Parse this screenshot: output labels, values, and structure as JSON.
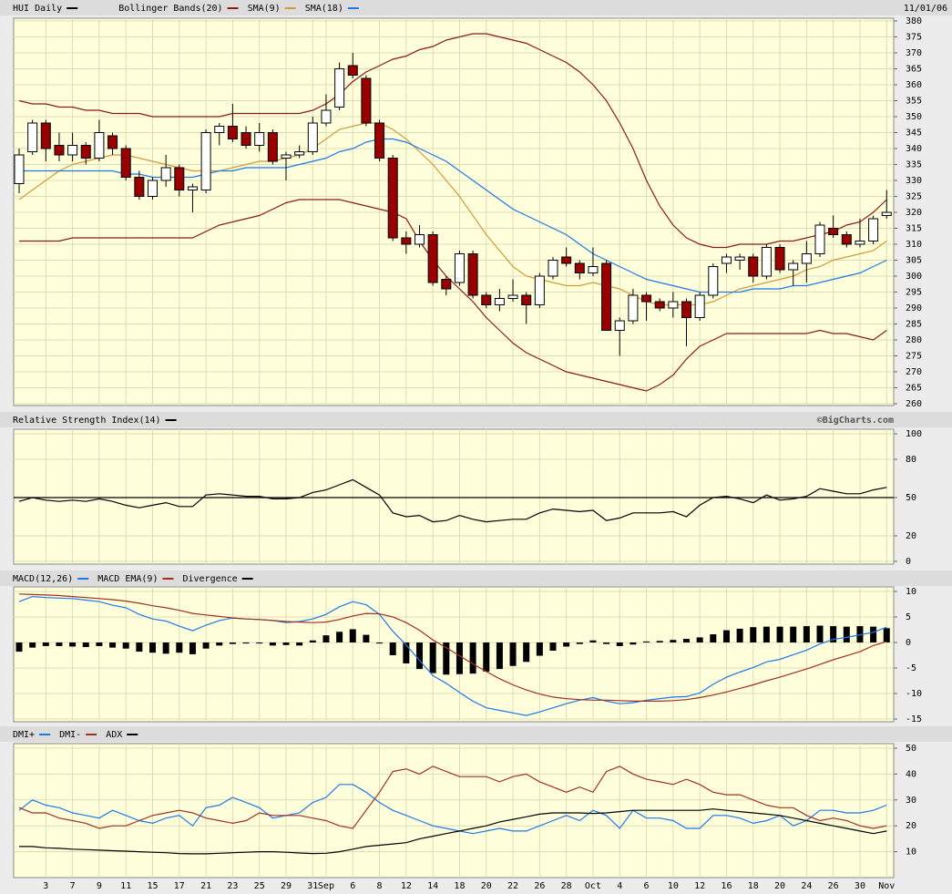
{
  "chart_data": [
    {
      "type": "candlestick",
      "title": "HUI Daily",
      "date": "11/01/06",
      "color": "#000000",
      "up_color": "#ffffff",
      "down_color": "#990000",
      "open": [
        329,
        339,
        348,
        341,
        338,
        341,
        337,
        344,
        340,
        331,
        325,
        330,
        334,
        327,
        327,
        345,
        347,
        345,
        341,
        345,
        337,
        338,
        339,
        348,
        353,
        366,
        362,
        348,
        337,
        312,
        310,
        313,
        299,
        298,
        307,
        294,
        291,
        293,
        294,
        291,
        300,
        306,
        304,
        301,
        304,
        283,
        286,
        294,
        292,
        290,
        292,
        287,
        294,
        304,
        305,
        306,
        300,
        309,
        302,
        304,
        307,
        315,
        313,
        310,
        311,
        319
      ],
      "high": [
        340,
        349,
        349,
        345,
        345,
        342,
        349,
        345,
        341,
        333,
        331,
        338,
        335,
        329,
        346,
        348,
        354,
        347,
        348,
        346,
        339,
        341,
        350,
        357,
        367,
        370,
        363,
        349,
        338,
        314,
        316,
        314,
        300,
        308,
        308,
        295,
        296,
        299,
        295,
        301,
        306,
        309,
        305,
        309,
        305,
        287,
        296,
        295,
        293,
        295,
        293,
        295,
        304,
        307,
        307,
        307,
        310,
        310,
        305,
        311,
        317,
        319,
        314,
        318,
        319,
        327
      ],
      "low": [
        326,
        338,
        336,
        336,
        336,
        335,
        336,
        338,
        330,
        324,
        324,
        328,
        325,
        320,
        326,
        341,
        342,
        340,
        339,
        335,
        330,
        337,
        338,
        347,
        352,
        362,
        347,
        336,
        311,
        307,
        309,
        297,
        294,
        297,
        293,
        290,
        289,
        292,
        285,
        290,
        299,
        303,
        299,
        300,
        283,
        275,
        285,
        286,
        289,
        287,
        278,
        286,
        293,
        301,
        302,
        298,
        299,
        301,
        297,
        298,
        306,
        312,
        309,
        309,
        310,
        318
      ],
      "close": [
        338,
        348,
        340,
        338,
        341,
        337,
        345,
        340,
        331,
        325,
        330,
        334,
        327,
        328,
        345,
        347,
        343,
        341,
        345,
        336,
        338,
        339,
        348,
        352,
        365,
        363,
        348,
        337,
        312,
        310,
        313,
        298,
        296,
        307,
        294,
        291,
        293,
        294,
        291,
        300,
        305,
        304,
        301,
        303,
        283,
        286,
        294,
        292,
        290,
        292,
        287,
        294,
        303,
        306,
        306,
        300,
        309,
        302,
        304,
        307,
        316,
        313,
        310,
        311,
        318,
        320
      ],
      "series": [
        {
          "name": "Bollinger Bands(20)",
          "color": "#8b1a1a",
          "upper": [
            355,
            354,
            354,
            353,
            353,
            352,
            352,
            351,
            351,
            351,
            350,
            350,
            350,
            350,
            350,
            350,
            351,
            351,
            351,
            351,
            351,
            351,
            352,
            354,
            357,
            361,
            364,
            366,
            368,
            369,
            371,
            372,
            374,
            375,
            376,
            376,
            375,
            374,
            373,
            371,
            369,
            367,
            364,
            360,
            355,
            348,
            340,
            330,
            322,
            316,
            312,
            310,
            309,
            309,
            310,
            310,
            310,
            311,
            311,
            312,
            313,
            314,
            316,
            317,
            320,
            324
          ],
          "lower": [
            311,
            311,
            311,
            311,
            312,
            312,
            312,
            312,
            312,
            312,
            312,
            312,
            312,
            312,
            314,
            316,
            317,
            318,
            319,
            321,
            323,
            324,
            324,
            324,
            324,
            323,
            322,
            321,
            320,
            318,
            311,
            305,
            300,
            296,
            292,
            287,
            283,
            279,
            276,
            274,
            272,
            270,
            269,
            268,
            267,
            266,
            265,
            264,
            266,
            269,
            274,
            278,
            280,
            282,
            282,
            282,
            282,
            282,
            282,
            282,
            283,
            282,
            282,
            281,
            280,
            283
          ]
        },
        {
          "name": "SMA(9)",
          "color": "#d49a3a",
          "values": [
            324,
            327,
            330,
            333,
            335,
            336,
            337,
            338,
            338,
            337,
            336,
            335,
            334,
            333,
            333,
            333,
            334,
            335,
            336,
            336,
            337,
            338,
            340,
            343,
            346,
            347,
            348,
            348,
            346,
            343,
            339,
            335,
            330,
            325,
            319,
            313,
            308,
            303,
            300,
            299,
            298,
            297,
            297,
            298,
            297,
            296,
            294,
            292,
            291,
            291,
            291,
            291,
            292,
            294,
            296,
            297,
            298,
            299,
            300,
            302,
            303,
            305,
            306,
            307,
            308,
            311
          ]
        },
        {
          "name": "SMA(18)",
          "color": "#1e78e6",
          "values": [
            333,
            333,
            333,
            333,
            333,
            333,
            333,
            333,
            332,
            332,
            331,
            331,
            331,
            331,
            332,
            333,
            333,
            334,
            334,
            334,
            334,
            335,
            336,
            337,
            339,
            340,
            342,
            343,
            343,
            342,
            340,
            338,
            336,
            333,
            330,
            327,
            324,
            321,
            319,
            317,
            315,
            313,
            310,
            307,
            305,
            303,
            301,
            299,
            298,
            297,
            296,
            295,
            295,
            295,
            295,
            296,
            296,
            296,
            297,
            297,
            298,
            299,
            300,
            301,
            303,
            305
          ]
        }
      ],
      "ylim": [
        260,
        380
      ],
      "yticks": [
        260,
        265,
        270,
        275,
        280,
        285,
        290,
        295,
        300,
        305,
        310,
        315,
        320,
        325,
        330,
        335,
        340,
        345,
        350,
        355,
        360,
        365,
        370,
        375,
        380
      ],
      "grid": true
    },
    {
      "type": "line",
      "title": "Relative Strength Index(14)",
      "source": "©BigCharts.com",
      "color": "#000000",
      "values": [
        47,
        50,
        48,
        47,
        48,
        47,
        49,
        47,
        44,
        42,
        44,
        46,
        43,
        43,
        52,
        53,
        52,
        51,
        51,
        49,
        49,
        50,
        54,
        56,
        60,
        64,
        58,
        52,
        38,
        35,
        36,
        31,
        32,
        36,
        33,
        31,
        32,
        33,
        33,
        38,
        41,
        40,
        39,
        40,
        32,
        34,
        38,
        38,
        38,
        39,
        35,
        44,
        50,
        51,
        49,
        46,
        52,
        48,
        49,
        51,
        57,
        55,
        53,
        53,
        56,
        58
      ],
      "midline": 50,
      "ylim": [
        0,
        100
      ],
      "yticks": [
        0,
        20,
        50,
        80,
        100
      ],
      "grid": true
    },
    {
      "type": "line",
      "series": [
        {
          "name": "MACD(12,26)",
          "color": "#1e78e6",
          "values": [
            8,
            9,
            8.8,
            8.7,
            8.6,
            8.3,
            8,
            7.3,
            6.8,
            5.5,
            4.6,
            4.2,
            3.2,
            2.3,
            3.4,
            4.3,
            4.8,
            4.6,
            4.5,
            4.3,
            3.9,
            4.1,
            4.6,
            5.5,
            7,
            8,
            7.4,
            5.5,
            2.2,
            -0.5,
            -3.5,
            -6.5,
            -8,
            -9.8,
            -11.5,
            -12.8,
            -13.3,
            -13.8,
            -14.3,
            -13.6,
            -12.8,
            -12,
            -11.3,
            -10.8,
            -11.5,
            -12,
            -11.8,
            -11.3,
            -11,
            -10.7,
            -10.6,
            -9.9,
            -8.2,
            -6.8,
            -5.8,
            -4.9,
            -3.8,
            -3.3,
            -2.4,
            -1.5,
            -0.3,
            0.6,
            1,
            1.5,
            2,
            3
          ]
        },
        {
          "name": "MACD EMA(9)",
          "color": "#a03020",
          "values": [
            9.5,
            9.4,
            9.3,
            9.2,
            9,
            8.8,
            8.6,
            8.4,
            8.1,
            7.7,
            7.2,
            6.8,
            6.3,
            5.7,
            5.4,
            5.1,
            4.8,
            4.6,
            4.5,
            4.3,
            4.1,
            4,
            3.9,
            4,
            4.5,
            5.2,
            5.7,
            5.6,
            5,
            3.9,
            2.4,
            0.5,
            -1,
            -2.6,
            -4.2,
            -5.7,
            -7.1,
            -8.3,
            -9.3,
            -10.1,
            -10.7,
            -11,
            -11.2,
            -11.3,
            -11.3,
            -11.4,
            -11.5,
            -11.5,
            -11.5,
            -11.4,
            -11.2,
            -10.8,
            -10.3,
            -9.7,
            -9,
            -8.3,
            -7.5,
            -6.8,
            -6,
            -5.2,
            -4.3,
            -3.4,
            -2.6,
            -1.8,
            -0.6,
            0.2
          ]
        },
        {
          "name": "Divergence",
          "color": "#000000",
          "style": "bar",
          "values": [
            -1.8,
            -1,
            -0.7,
            -0.7,
            -0.8,
            -0.9,
            -0.7,
            -1,
            -1.2,
            -1.8,
            -2,
            -2.2,
            -2,
            -2.3,
            -1.2,
            -0.6,
            -0.3,
            -0.2,
            -0.2,
            -0.6,
            -0.5,
            -0.6,
            0.4,
            1.4,
            2.1,
            2.6,
            1.5,
            -0.2,
            -2.5,
            -4.1,
            -5.2,
            -6,
            -6.3,
            -6.2,
            -6.1,
            -5.7,
            -5.2,
            -4.6,
            -3.8,
            -2.6,
            -1.6,
            -0.8,
            -0.3,
            0.4,
            -0.3,
            -0.7,
            -0.4,
            0.2,
            0.3,
            0.5,
            0.7,
            1,
            1.6,
            2.4,
            2.7,
            3,
            3.1,
            3.1,
            3.1,
            3.2,
            3.3,
            3.2,
            3.1,
            3.2,
            3.1,
            2.8
          ]
        }
      ],
      "ylim": [
        -15,
        10
      ],
      "yticks": [
        -15,
        -10,
        -5,
        0,
        5,
        10
      ],
      "grid": true
    },
    {
      "type": "line",
      "categories": [
        null,
        null,
        "3",
        null,
        "7",
        null,
        "9",
        null,
        "11",
        null,
        "15",
        null,
        "17",
        null,
        "21",
        null,
        "23",
        null,
        "25",
        null,
        "29",
        null,
        "31",
        "Sep",
        null,
        "6",
        null,
        "8",
        null,
        "12",
        null,
        "14",
        null,
        "18",
        null,
        "20",
        null,
        "22",
        null,
        "26",
        null,
        "28",
        null,
        "Oct",
        null,
        "4",
        null,
        "6",
        null,
        "10",
        null,
        "12",
        null,
        "16",
        null,
        "18",
        null,
        "20",
        null,
        "24",
        null,
        "26",
        null,
        "30",
        null,
        "Nov"
      ],
      "series": [
        {
          "name": "DMI+",
          "color": "#1e78e6",
          "values": [
            26,
            30,
            28,
            27,
            25,
            24,
            23,
            26,
            24,
            22,
            21,
            23,
            24,
            20,
            27,
            28,
            31,
            29,
            27,
            23,
            24,
            25,
            29,
            31,
            36,
            36,
            33,
            29,
            26,
            24,
            22,
            20,
            19,
            18,
            17,
            18,
            19,
            18,
            18,
            20,
            22,
            24,
            22,
            26,
            24,
            19,
            26,
            23,
            23,
            22,
            19,
            19,
            24,
            24,
            23,
            21,
            22,
            24,
            20,
            22,
            26,
            26,
            25,
            25,
            26,
            28
          ]
        },
        {
          "name": "DMI-",
          "color": "#a03020",
          "values": [
            27,
            25,
            25,
            23,
            22,
            21,
            19,
            20,
            20,
            22,
            24,
            25,
            26,
            25,
            23,
            22,
            21,
            22,
            25,
            24,
            24,
            24,
            23,
            22,
            20,
            19,
            26,
            33,
            41,
            42,
            40,
            43,
            41,
            39,
            39,
            39,
            37,
            39,
            40,
            37,
            35,
            33,
            35,
            33,
            41,
            43,
            40,
            38,
            37,
            36,
            38,
            36,
            33,
            32,
            32,
            30,
            28,
            27,
            27,
            24,
            22,
            23,
            22,
            20,
            19,
            20
          ]
        },
        {
          "name": "ADX",
          "color": "#000000",
          "values": [
            12,
            12,
            11.5,
            11.3,
            11,
            10.8,
            10.6,
            10.4,
            10.2,
            10,
            9.8,
            9.6,
            9.3,
            9.2,
            9.2,
            9.4,
            9.6,
            9.8,
            10,
            10,
            9.8,
            9.5,
            9.3,
            9.4,
            10,
            11,
            12,
            12.5,
            13,
            13.5,
            15,
            16,
            17,
            18,
            19,
            20,
            21.5,
            22.5,
            23.5,
            24.5,
            25,
            25,
            25,
            24.8,
            25,
            25.5,
            26,
            26,
            26,
            26,
            26,
            26,
            26.5,
            26,
            25.5,
            25,
            24.5,
            24,
            23,
            22,
            21,
            20,
            19,
            18,
            17,
            18
          ]
        }
      ],
      "ylim": [
        0,
        50
      ],
      "yticks": [
        10,
        20,
        30,
        40,
        50
      ],
      "grid": true
    }
  ]
}
